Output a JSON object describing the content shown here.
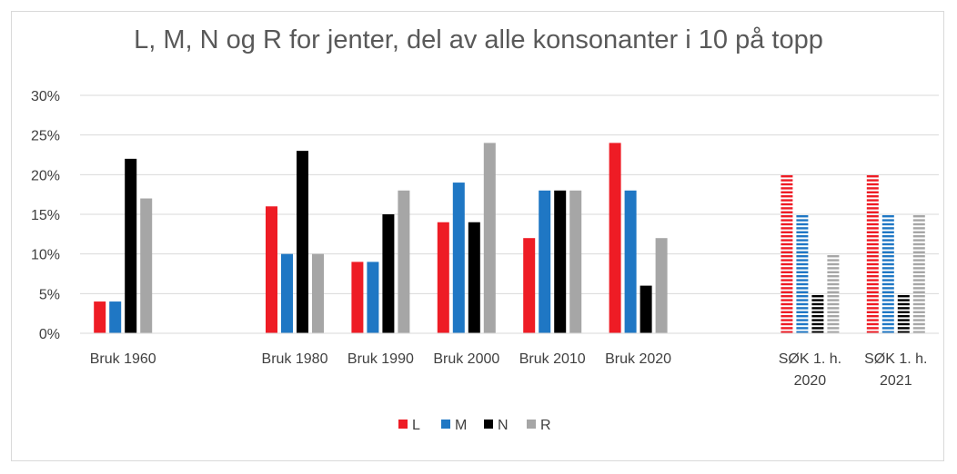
{
  "chart_data": {
    "type": "bar",
    "title": "L, M, N og R for jenter, del av alle konsonanter i 10 på topp",
    "xlabel": "",
    "ylabel": "",
    "ylim": [
      0,
      30
    ],
    "yticks": [
      "0%",
      "5%",
      "10%",
      "15%",
      "20%",
      "25%",
      "30%"
    ],
    "grid": true,
    "legend_position": "bottom",
    "categories": [
      [
        "Bruk 1960"
      ],
      [],
      [
        "Bruk 1980"
      ],
      [
        "Bruk 1990"
      ],
      [
        "Bruk 2000"
      ],
      [
        "Bruk 2010"
      ],
      [
        "Bruk 2020"
      ],
      [],
      [
        "SØK 1. h.",
        "2020"
      ],
      [
        "SØK 1. h.",
        "2021"
      ]
    ],
    "series": [
      {
        "name": "L",
        "color": "#ee1c25",
        "values": [
          4,
          null,
          16,
          9,
          14,
          12,
          24,
          null,
          20,
          20
        ]
      },
      {
        "name": "M",
        "color": "#1f77c4",
        "values": [
          4,
          null,
          10,
          9,
          19,
          18,
          18,
          null,
          15,
          15
        ]
      },
      {
        "name": "N",
        "color": "#000000",
        "values": [
          22,
          null,
          23,
          15,
          14,
          18,
          6,
          null,
          5,
          5
        ]
      },
      {
        "name": "R",
        "color": "#a6a6a6",
        "values": [
          17,
          null,
          10,
          18,
          24,
          18,
          12,
          null,
          10,
          15
        ]
      }
    ],
    "dashed_categories": [
      8,
      9
    ]
  }
}
